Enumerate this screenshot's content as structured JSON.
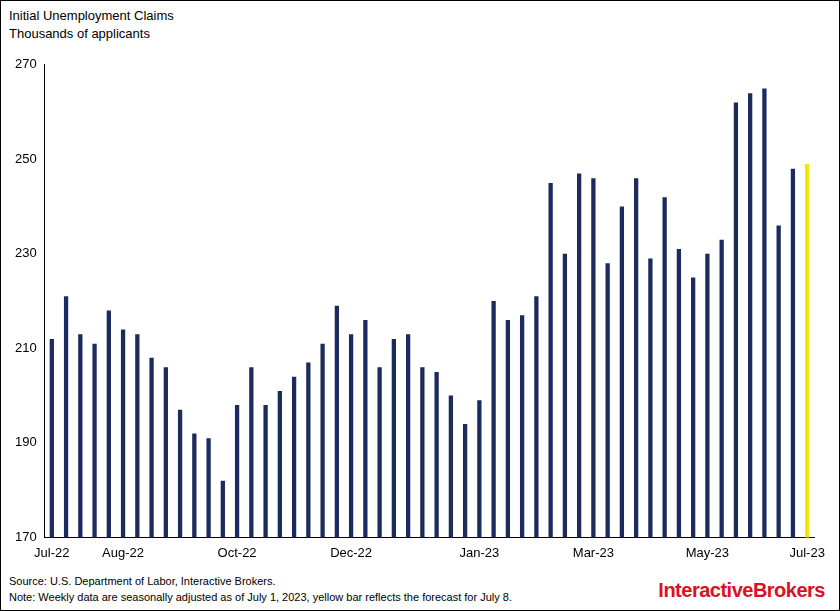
{
  "chart_data": {
    "type": "bar",
    "title": "Initial Unemployment Claims",
    "subtitle": "Thousands of applicants",
    "categories": [
      "Jul-22",
      null,
      null,
      null,
      null,
      "Aug-22",
      null,
      null,
      null,
      null,
      null,
      null,
      null,
      "Oct-22",
      null,
      null,
      null,
      null,
      null,
      null,
      null,
      "Dec-22",
      null,
      null,
      null,
      null,
      null,
      null,
      null,
      null,
      "Jan-23",
      null,
      null,
      null,
      null,
      null,
      null,
      null,
      "Mar-23",
      null,
      null,
      null,
      null,
      null,
      null,
      null,
      "May-23",
      null,
      null,
      null,
      null,
      null,
      null,
      "Jul-23"
    ],
    "values": [
      212,
      221,
      213,
      211,
      218,
      214,
      213,
      208,
      206,
      197,
      192,
      191,
      182,
      198,
      206,
      198,
      201,
      204,
      207,
      211,
      219,
      213,
      216,
      206,
      212,
      213,
      206,
      205,
      200,
      194,
      199,
      220,
      216,
      217,
      221,
      245,
      230,
      247,
      246,
      228,
      240,
      246,
      229,
      242,
      231,
      225,
      230,
      233,
      262,
      264,
      265,
      236,
      248,
      249
    ],
    "colors": [
      "#1c2a5e",
      "#1c2a5e",
      "#1c2a5e",
      "#1c2a5e",
      "#1c2a5e",
      "#1c2a5e",
      "#1c2a5e",
      "#1c2a5e",
      "#1c2a5e",
      "#1c2a5e",
      "#1c2a5e",
      "#1c2a5e",
      "#1c2a5e",
      "#1c2a5e",
      "#1c2a5e",
      "#1c2a5e",
      "#1c2a5e",
      "#1c2a5e",
      "#1c2a5e",
      "#1c2a5e",
      "#1c2a5e",
      "#1c2a5e",
      "#1c2a5e",
      "#1c2a5e",
      "#1c2a5e",
      "#1c2a5e",
      "#1c2a5e",
      "#1c2a5e",
      "#1c2a5e",
      "#1c2a5e",
      "#1c2a5e",
      "#1c2a5e",
      "#1c2a5e",
      "#1c2a5e",
      "#1c2a5e",
      "#1c2a5e",
      "#1c2a5e",
      "#1c2a5e",
      "#1c2a5e",
      "#1c2a5e",
      "#1c2a5e",
      "#1c2a5e",
      "#1c2a5e",
      "#1c2a5e",
      "#1c2a5e",
      "#1c2a5e",
      "#1c2a5e",
      "#1c2a5e",
      "#1c2a5e",
      "#1c2a5e",
      "#1c2a5e",
      "#1c2a5e",
      "#1c2a5e",
      "#f5e60a"
    ],
    "ylim": [
      170,
      270
    ],
    "yticks": [
      170,
      190,
      210,
      230,
      250,
      270
    ],
    "grid": false,
    "annotations": [
      "Source: U.S. Department of Labor, Interactive Brokers.",
      "Note: Weekly data are seasonally adjusted as of July 1, 2023, yellow bar reflects the forecast for July 8.",
      "InteractiveBrokers"
    ]
  }
}
